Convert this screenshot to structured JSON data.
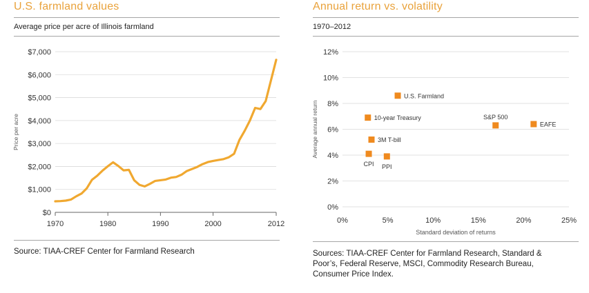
{
  "left": {
    "title": "U.S. farmland values",
    "subtitle": "Average price per acre of Illinois farmland",
    "source": "Source: TIAA-CREF Center for Farmland Research"
  },
  "right": {
    "title": "Annual return vs. volatility",
    "subtitle": "1970–2012",
    "source": "Sources: TIAA-CREF Center for Farmland Research, Standard & Poor’s, Federal Reserve, MSCI, Commodity Research Bureau, Consumer Price Index."
  },
  "colors": {
    "accent": "#f0a830",
    "title": "#e9a23b",
    "marker": "#ef8a1f",
    "grid": "#d9d9d9"
  },
  "chart_data": [
    {
      "type": "line",
      "title": "U.S. farmland values",
      "subtitle": "Average price per acre of Illinois farmland",
      "xlabel": "",
      "ylabel": "Price per acre",
      "xlim": [
        1970,
        2012
      ],
      "ylim": [
        0,
        7000
      ],
      "xticks": [
        1970,
        1980,
        1990,
        2000,
        2012
      ],
      "xtick_labels": [
        "1970",
        "1980",
        "1990",
        "2000",
        "2012"
      ],
      "yticks": [
        0,
        1000,
        2000,
        3000,
        4000,
        5000,
        6000,
        7000
      ],
      "ytick_labels": [
        "$0",
        "$1,000",
        "$2,000",
        "$3,000",
        "$4,000",
        "$5,000",
        "$6,000",
        "$7,000"
      ],
      "grid": "horizontal",
      "x": [
        1970,
        1971,
        1972,
        1973,
        1974,
        1975,
        1976,
        1977,
        1978,
        1979,
        1980,
        1981,
        1982,
        1983,
        1984,
        1985,
        1986,
        1987,
        1988,
        1989,
        1990,
        1991,
        1992,
        1993,
        1994,
        1995,
        1996,
        1997,
        1998,
        1999,
        2000,
        2001,
        2002,
        2003,
        2004,
        2005,
        2006,
        2007,
        2008,
        2009,
        2010,
        2011,
        2012
      ],
      "y": [
        480,
        490,
        510,
        560,
        700,
        820,
        1050,
        1420,
        1600,
        1820,
        2010,
        2180,
        2020,
        1830,
        1850,
        1400,
        1200,
        1130,
        1240,
        1370,
        1400,
        1430,
        1510,
        1540,
        1640,
        1800,
        1890,
        1980,
        2100,
        2190,
        2240,
        2280,
        2320,
        2400,
        2550,
        3150,
        3550,
        4000,
        4550,
        4500,
        4850,
        5750,
        6650
      ]
    },
    {
      "type": "scatter",
      "title": "Annual return vs. volatility",
      "subtitle": "1970–2012",
      "xlabel": "Standard deviation of returns",
      "ylabel": "Average annual return",
      "xlim": [
        0,
        25
      ],
      "ylim": [
        0,
        12
      ],
      "xticks": [
        0,
        5,
        10,
        15,
        20,
        25
      ],
      "xtick_labels": [
        "0%",
        "5%",
        "10%",
        "15%",
        "20%",
        "25%"
      ],
      "yticks": [
        0,
        2,
        4,
        6,
        8,
        10,
        12
      ],
      "ytick_labels": [
        "0%",
        "2%",
        "4%",
        "6%",
        "8%",
        "10%",
        "12%"
      ],
      "grid": "horizontal",
      "points": [
        {
          "name": "U.S. Farmland",
          "x": 6.1,
          "y": 8.6,
          "label_pos": "right"
        },
        {
          "name": "10-year Treasury",
          "x": 2.8,
          "y": 6.9,
          "label_pos": "right"
        },
        {
          "name": "3M T-bill",
          "x": 3.2,
          "y": 5.2,
          "label_pos": "right"
        },
        {
          "name": "CPI",
          "x": 2.9,
          "y": 4.1,
          "label_pos": "below"
        },
        {
          "name": "PPI",
          "x": 4.9,
          "y": 3.9,
          "label_pos": "below"
        },
        {
          "name": "S&P 500",
          "x": 16.9,
          "y": 6.3,
          "label_pos": "above"
        },
        {
          "name": "EAFE",
          "x": 21.1,
          "y": 6.4,
          "label_pos": "right"
        }
      ]
    }
  ]
}
